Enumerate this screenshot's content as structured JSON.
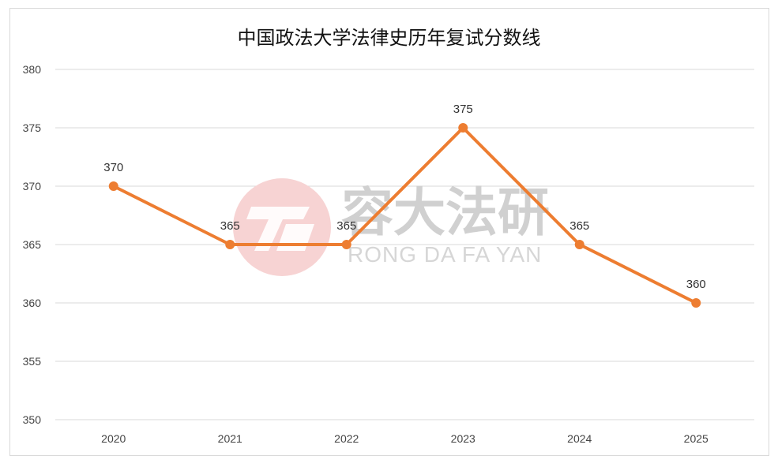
{
  "chart_data": {
    "type": "line",
    "title": "中国政法大学法律史历年复试分数线",
    "categories": [
      "2020",
      "2021",
      "2022",
      "2023",
      "2024",
      "2025"
    ],
    "values": [
      370,
      365,
      365,
      375,
      365,
      360
    ],
    "ylim": [
      350,
      380
    ],
    "yticks": [
      "350",
      "355",
      "360",
      "365",
      "370",
      "375",
      "380"
    ],
    "data_labels": [
      "370",
      "365",
      "365",
      "375",
      "365",
      "360"
    ],
    "grid": true,
    "legend": "none",
    "line_color": "#ED7D31",
    "grid_color": "#d9d9d9"
  },
  "watermark": {
    "logo_text": "RD",
    "cn_text": "容大法研",
    "en_text": "RONG DA FA YAN"
  }
}
